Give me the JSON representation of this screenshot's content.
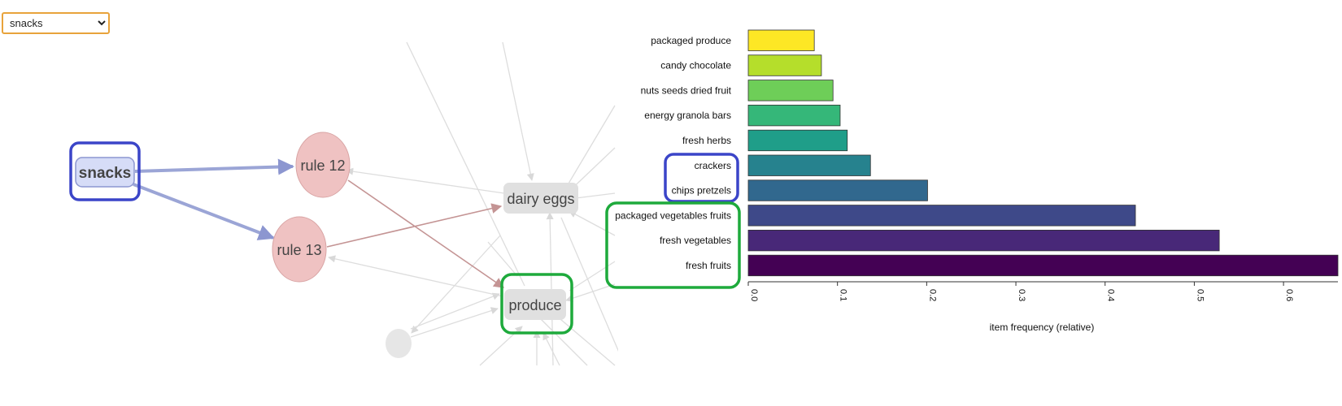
{
  "filter": {
    "selected": "snacks",
    "options": [
      "snacks"
    ]
  },
  "graph": {
    "source_node": "snacks",
    "rule_nodes": [
      "rule 12",
      "rule 13"
    ],
    "target_nodes": [
      "dairy eggs",
      "produce"
    ],
    "colors": {
      "highlight_blue": "#3b45c8",
      "highlight_green": "#1eaa3c",
      "source_fill": "#d6dcf7",
      "source_edge": "#9ba5d6",
      "rule_fill": "#efc2c2",
      "rule_edge": "#c49494",
      "target_fill": "#e0e0e0",
      "faded": "#dddddd"
    }
  },
  "chart_data": {
    "type": "bar",
    "orientation": "horizontal",
    "categories": [
      "packaged produce",
      "candy chocolate",
      "nuts seeds dried fruit",
      "energy granola bars",
      "fresh herbs",
      "crackers",
      "chips pretzels",
      "packaged vegetables fruits",
      "fresh vegetables",
      "fresh fruits"
    ],
    "values": [
      0.074,
      0.082,
      0.095,
      0.103,
      0.111,
      0.137,
      0.201,
      0.434,
      0.528,
      0.661
    ],
    "colors": [
      "#fde725",
      "#b5de2b",
      "#6ece58",
      "#35b779",
      "#1f9e89",
      "#26828e",
      "#31688e",
      "#3e4989",
      "#482878",
      "#440154"
    ],
    "xlabel": "item frequency (relative)",
    "xticks": [
      "0.0",
      "0.1",
      "0.2",
      "0.3",
      "0.4",
      "0.5",
      "0.6"
    ],
    "xlim": [
      0,
      0.661
    ],
    "highlight_blue": [
      "crackers",
      "chips pretzels"
    ],
    "highlight_green": [
      "packaged vegetables fruits",
      "fresh vegetables",
      "fresh fruits"
    ]
  }
}
